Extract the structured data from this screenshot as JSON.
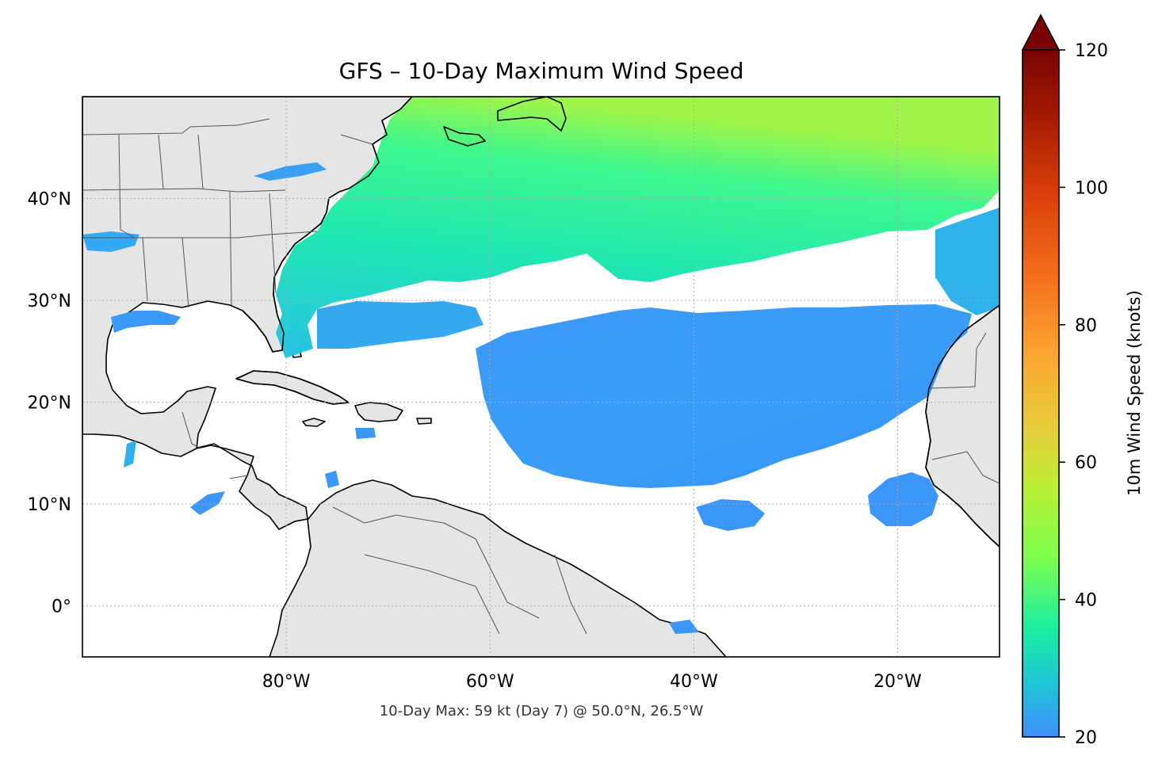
{
  "title": "GFS – 10-Day Maximum Wind Speed",
  "footer": "10-Day Max: 59 kt (Day 7) @ 50.0°N, 26.5°W",
  "map": {
    "projection": "PlateCarree",
    "lon_range": [
      -100,
      -10
    ],
    "lat_range": [
      -5,
      50
    ],
    "gridlines": true,
    "ocean_color": "#ffffff",
    "land_color": "#e5e5e5",
    "coastline_color": "#000000",
    "border_color": "#555555",
    "lon_ticks": [
      {
        "value": -80,
        "label": "80°W"
      },
      {
        "value": -60,
        "label": "60°W"
      },
      {
        "value": -40,
        "label": "40°W"
      },
      {
        "value": -20,
        "label": "20°W"
      }
    ],
    "lat_ticks": [
      {
        "value": 40,
        "label": "40°N"
      },
      {
        "value": 30,
        "label": "30°N"
      },
      {
        "value": 20,
        "label": "20°N"
      },
      {
        "value": 10,
        "label": "10°N"
      },
      {
        "value": 0,
        "label": "0°"
      }
    ]
  },
  "colorbar": {
    "label": "10m Wind Speed (knots)",
    "min": 20,
    "max": 120,
    "extend": "max",
    "ticks": [
      {
        "value": 20,
        "label": "20"
      },
      {
        "value": 40,
        "label": "40"
      },
      {
        "value": 60,
        "label": "60"
      },
      {
        "value": 80,
        "label": "80"
      },
      {
        "value": 100,
        "label": "100"
      },
      {
        "value": 120,
        "label": "120"
      }
    ],
    "stops": [
      {
        "value": 20,
        "color": "#3e8efa"
      },
      {
        "value": 28,
        "color": "#1ec6d6"
      },
      {
        "value": 36,
        "color": "#1bef9f"
      },
      {
        "value": 46,
        "color": "#7dfe4f"
      },
      {
        "value": 56,
        "color": "#b8f035"
      },
      {
        "value": 64,
        "color": "#e4d13a"
      },
      {
        "value": 76,
        "color": "#fca331"
      },
      {
        "value": 88,
        "color": "#f26a1a"
      },
      {
        "value": 100,
        "color": "#d73c09"
      },
      {
        "value": 110,
        "color": "#a51c03"
      },
      {
        "value": 120,
        "color": "#7a0403"
      }
    ],
    "over_color": "#7a0403"
  },
  "wind_regions": [
    {
      "name": "north-atlantic-band",
      "level": "30-55 kt"
    },
    {
      "name": "central-atlantic-trades",
      "level": "20-30 kt"
    }
  ],
  "maximum": {
    "value_kt": 59,
    "day": 7,
    "lat": 50.0,
    "lon": -26.5
  }
}
